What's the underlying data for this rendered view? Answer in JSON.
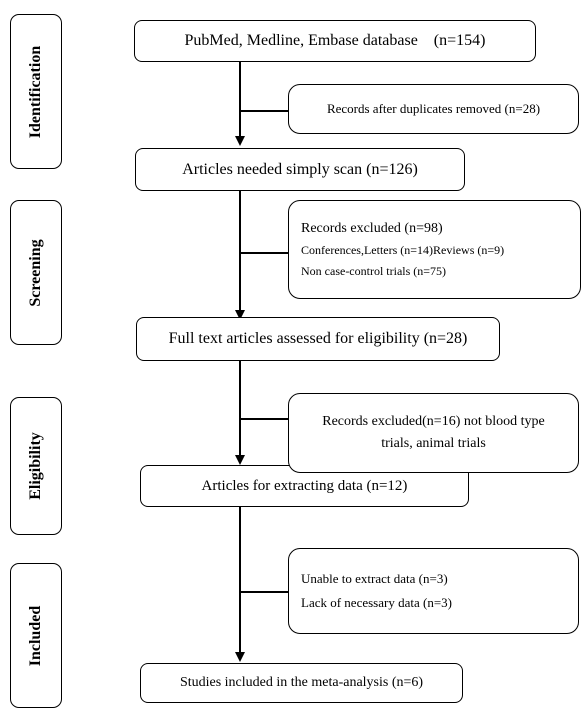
{
  "stages": {
    "identification": "Identification",
    "screening": "Screening",
    "eligibility": "Eligibility",
    "included": "Included"
  },
  "boxes": {
    "database": "PubMed, Medline, Embase database    (n=154)",
    "simply_scan": "Articles needed simply scan (n=126)",
    "full_text": "Full text articles assessed for eligibility (n=28)",
    "extracting": "Articles for extracting data (n=12)",
    "included": "Studies included in the meta-analysis (n=6)"
  },
  "exclusions": {
    "duplicates": "Records after duplicates removed (n=28)",
    "screening": {
      "title": "Records excluded (n=98)",
      "line1": "Conferences,Letters (n=14)Reviews (n=9)",
      "line2": "Non case-control trials (n=75)"
    },
    "eligibility": {
      "line1": "Records excluded(n=16) not blood type",
      "line2": "trials, animal trials"
    },
    "extraction": {
      "line1": "Unable to extract data (n=3)",
      "line2": "Lack of necessary data (n=3)"
    }
  }
}
